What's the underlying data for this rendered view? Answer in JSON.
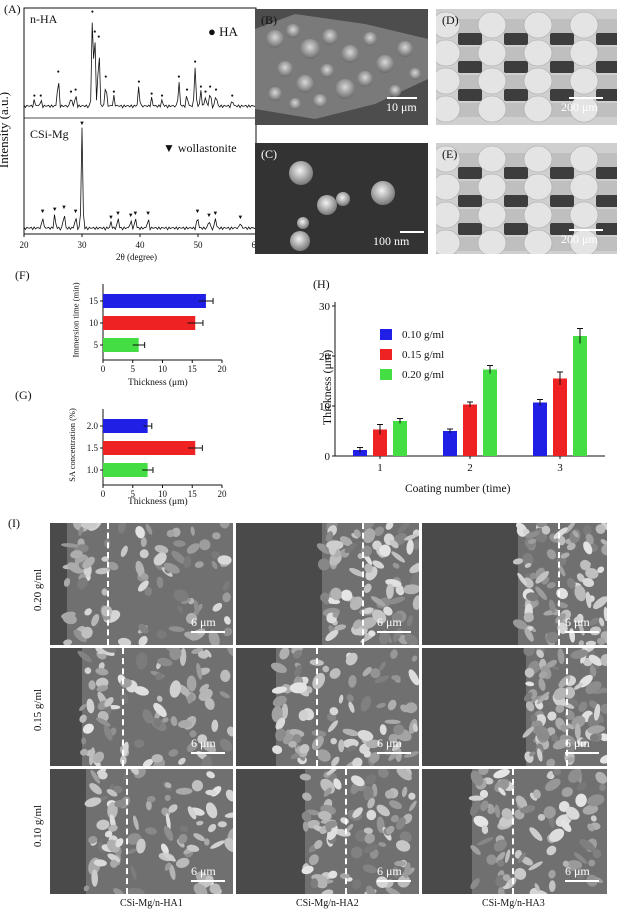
{
  "panels": {
    "A": {
      "label": "(A)",
      "y_label": "Intensity (a.u.)",
      "x_label": "2θ (degree)",
      "x_ticks": [
        "20",
        "30",
        "40",
        "50",
        "60"
      ],
      "top_sample": "n-HA",
      "top_legend": "HA",
      "bottom_sample": "CSi-Mg",
      "bottom_legend": "wollastonite"
    },
    "B": {
      "label": "(B)",
      "scale": "10 μm"
    },
    "C": {
      "label": "(C)",
      "scale": "100 nm"
    },
    "D": {
      "label": "(D)",
      "scale": "200 μm"
    },
    "E": {
      "label": "(E)",
      "scale": "200 μm"
    },
    "F": {
      "label": "(F)",
      "ylabel": "Immersion time (min)",
      "xlabel": "Thickness (μm)"
    },
    "G": {
      "label": "(G)",
      "ylabel": "SA concentration (%)",
      "xlabel": "Thickness (μm)"
    },
    "H": {
      "label": "(H)",
      "ylabel": "Thickness (μm)",
      "xlabel": "Coating number (time)"
    },
    "I": {
      "label": "(I)",
      "rows": [
        "0.20 g/ml",
        "0.15 g/ml",
        "0.10 g/ml"
      ],
      "cols": [
        "CSi-Mg/n-HA1",
        "CSi-Mg/n-HA2",
        "CSi-Mg/n-HA3"
      ],
      "scale": "6 μm"
    }
  },
  "colors": {
    "blue": "#1f1fe6",
    "red": "#ee2222",
    "green": "#44dd44"
  },
  "chart_data": [
    {
      "type": "line",
      "panel": "A-top",
      "title": "n-HA",
      "xlabel": "2θ (degree)",
      "ylabel": "Intensity (a.u.)",
      "xlim": [
        20,
        60
      ],
      "marker": "HA",
      "peaks_2theta": [
        21.8,
        22.9,
        25.9,
        28.1,
        28.9,
        31.8,
        32.2,
        32.9,
        34.1,
        35.5,
        39.8,
        42.0,
        43.8,
        46.7,
        48.1,
        49.5,
        50.5,
        51.3,
        52.1,
        53.1,
        55.9
      ]
    },
    {
      "type": "line",
      "panel": "A-bottom",
      "title": "CSi-Mg",
      "xlabel": "2θ (degree)",
      "ylabel": "Intensity (a.u.)",
      "xlim": [
        20,
        60
      ],
      "marker": "wollastonite",
      "peaks_2theta": [
        23.2,
        25.3,
        26.9,
        28.9,
        30.0,
        35.0,
        36.2,
        38.4,
        39.2,
        41.4,
        49.9,
        51.9,
        53.0,
        57.3
      ]
    },
    {
      "type": "bar",
      "panel": "F",
      "orientation": "horizontal",
      "ylabel": "Immersion time (min)",
      "xlabel": "Thickness (μm)",
      "categories": [
        "15",
        "10",
        "5"
      ],
      "values": [
        17.3,
        15.5,
        6.0
      ],
      "errors": [
        1.2,
        1.3,
        1.0
      ],
      "colors": [
        "#1f1fe6",
        "#ee2222",
        "#44dd44"
      ],
      "x_ticks": [
        0,
        5,
        10,
        15,
        20
      ],
      "xlim": [
        0,
        20
      ]
    },
    {
      "type": "bar",
      "panel": "G",
      "orientation": "horizontal",
      "ylabel": "SA concentration (%)",
      "xlabel": "Thickness (μm)",
      "categories": [
        "2.0",
        "1.5",
        "1.0"
      ],
      "values": [
        7.5,
        15.5,
        7.5
      ],
      "errors": [
        0.7,
        1.2,
        0.9
      ],
      "colors": [
        "#1f1fe6",
        "#ee2222",
        "#44dd44"
      ],
      "x_ticks": [
        0,
        5,
        10,
        15,
        20
      ],
      "xlim": [
        0,
        20
      ]
    },
    {
      "type": "bar",
      "panel": "H",
      "xlabel": "Coating number (time)",
      "ylabel": "Thickness (μm)",
      "categories": [
        "1",
        "2",
        "3"
      ],
      "ylim": [
        0,
        30
      ],
      "y_ticks": [
        0,
        10,
        20,
        30
      ],
      "legend": "top-left",
      "series": [
        {
          "name": "0.10 g/ml",
          "color": "#1f1fe6",
          "values": [
            1.2,
            5.0,
            10.7
          ],
          "errors": [
            0.5,
            0.4,
            0.6
          ]
        },
        {
          "name": "0.15 g/ml",
          "color": "#ee2222",
          "values": [
            5.3,
            10.3,
            15.5
          ],
          "errors": [
            1.0,
            0.5,
            1.3
          ]
        },
        {
          "name": "0.20 g/ml",
          "color": "#44dd44",
          "values": [
            7.0,
            17.3,
            24.0
          ],
          "errors": [
            0.5,
            0.8,
            1.5
          ]
        }
      ]
    }
  ]
}
